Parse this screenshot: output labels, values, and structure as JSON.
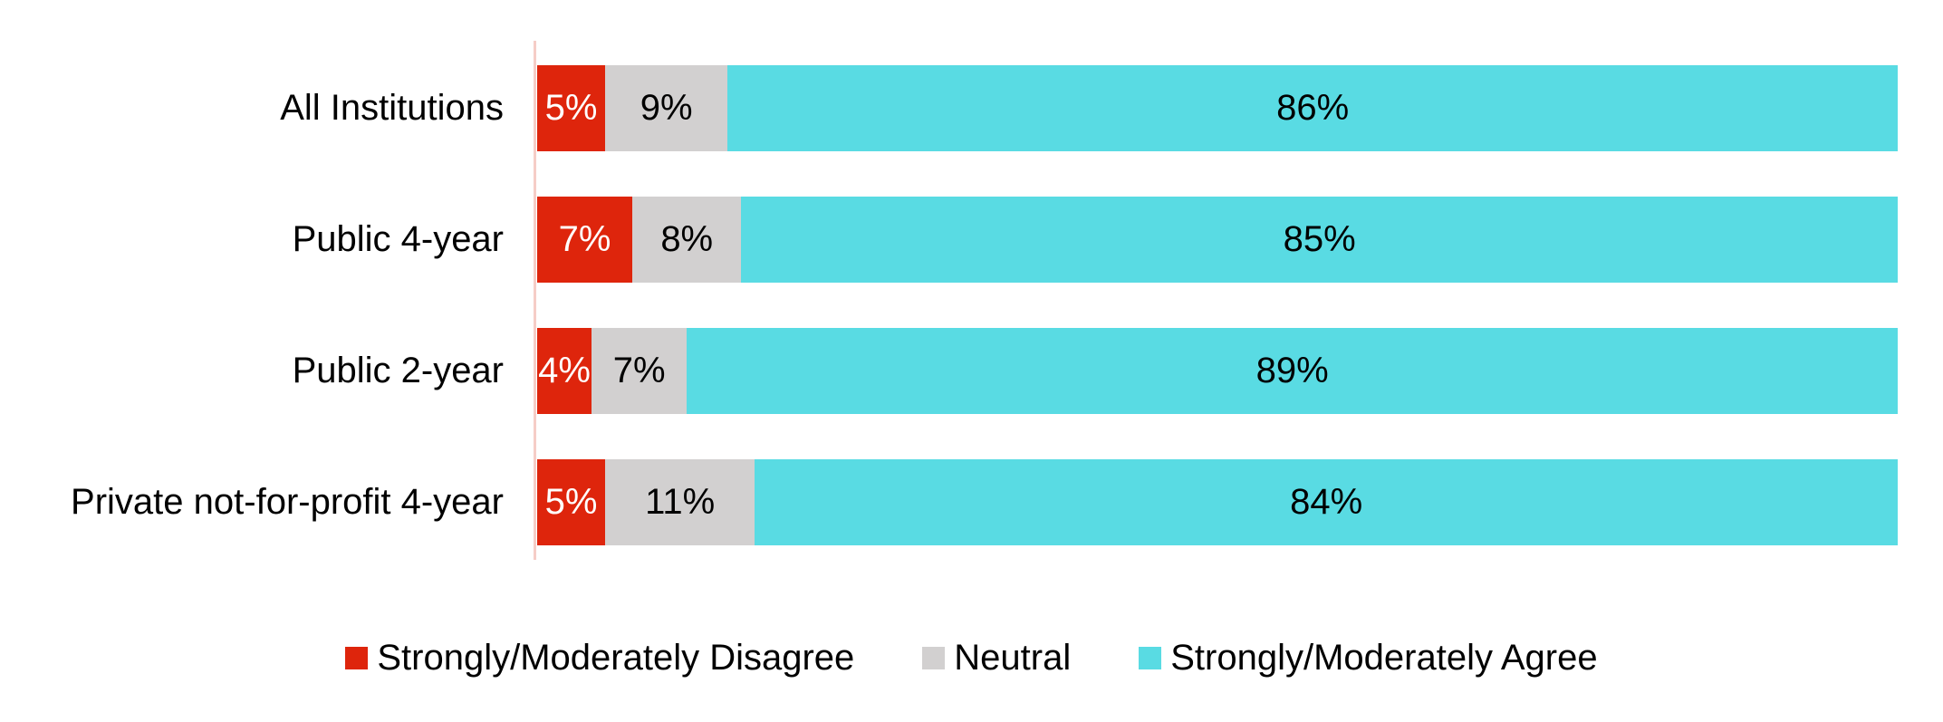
{
  "chart_data": {
    "type": "bar",
    "orientation": "horizontal",
    "stacked": true,
    "categories": [
      "All Institutions",
      "Public 4-year",
      "Public 2-year",
      "Private not-for-profit 4-year"
    ],
    "series": [
      {
        "name": "Strongly/Moderately Disagree",
        "color": "#de250c",
        "label_color": "#ffffff",
        "values": [
          5,
          7,
          4,
          5
        ]
      },
      {
        "name": "Neutral",
        "color": "#d2d0d0",
        "label_color": "#000000",
        "values": [
          9,
          8,
          7,
          11
        ]
      },
      {
        "name": "Strongly/Moderately Agree",
        "color": "#59dbe3",
        "label_color": "#000000",
        "values": [
          86,
          85,
          89,
          84
        ]
      }
    ],
    "value_suffix": "%",
    "xlim": [
      0,
      100
    ],
    "grid": false,
    "axis_line_color": "#f6cdc7",
    "legend_position": "bottom-center"
  }
}
